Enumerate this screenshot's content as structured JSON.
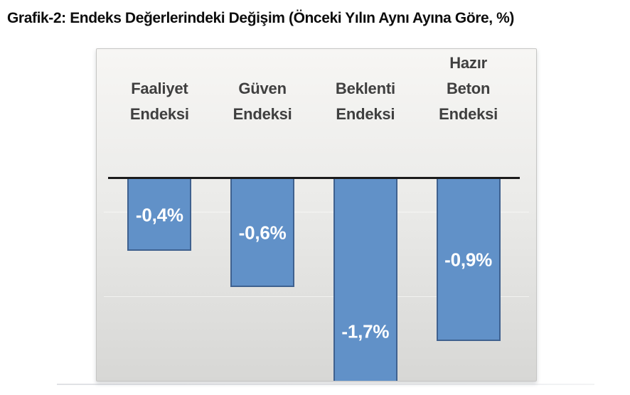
{
  "page": {
    "title": "Grafik-2: Endeks Değerlerindeki Değişim (Önceki Yılın Aynı Ayına Göre, %)"
  },
  "chart_data": {
    "type": "bar",
    "title": "Grafik-2: Endeks Değerlerindeki Değişim (Önceki Yılın Aynı Ayına Göre, %)",
    "categories": [
      "Faaliyet Endeksi",
      "Güven Endeksi",
      "Beklenti Endeksi",
      "Hazır Beton Endeksi"
    ],
    "category_lines": [
      [
        "Faaliyet",
        "Endeksi"
      ],
      [
        "Güven",
        "Endeksi"
      ],
      [
        "Beklenti",
        "Endeksi"
      ],
      [
        "Hazır",
        "Beton",
        "Endeksi"
      ]
    ],
    "values": [
      -0.4,
      -0.6,
      -1.7,
      -0.9
    ],
    "value_labels": [
      "-0,4%",
      "-0,6%",
      "-1,7%",
      "-0,9%"
    ],
    "unit": "%",
    "baseline_value": 0,
    "visible_ylim": [
      -1.13,
      0
    ],
    "clipped_bars": [
      "Beklenti Endeksi"
    ],
    "legend": "none",
    "grid": "faint-horizontal",
    "colors": {
      "bar_fill": "#6191C8",
      "bar_border": "#3F618F",
      "value_label": "#FFFFFF",
      "category_label": "#3F3F3F",
      "axis_line": "#1B1B1B",
      "panel_top": "#F7F6F4",
      "panel_bottom": "#D7D7D5",
      "title_color": "#0D0D0D"
    }
  }
}
